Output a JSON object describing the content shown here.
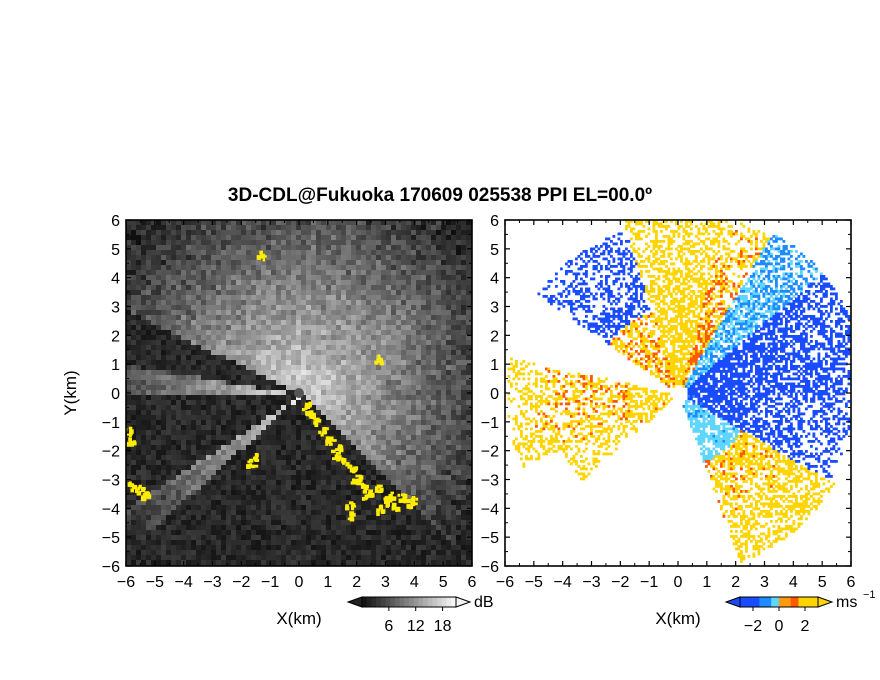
{
  "figure": {
    "title": "3D-CDL@Fukuoka 170609 025538 PPI EL=00.0º"
  },
  "chart_data": [
    {
      "type": "heatmap",
      "panel": "left",
      "quantity": "backscatter intensity",
      "xlabel": "X(km)",
      "ylabel": "Y(km)",
      "xlim": [
        -6,
        6
      ],
      "ylim": [
        -6,
        6
      ],
      "xticks": [
        "−6",
        "−5",
        "−4",
        "−3",
        "−2",
        "−1",
        "0",
        "1",
        "2",
        "3",
        "4",
        "5",
        "6"
      ],
      "yticks": [
        "6",
        "5",
        "4",
        "3",
        "2",
        "1",
        "0",
        "−1",
        "−2",
        "−3",
        "−4",
        "−5",
        "−6"
      ],
      "colorbar": {
        "unit": "dB",
        "ticks": [
          "6",
          "12",
          "18"
        ],
        "tick_values": [
          6,
          12,
          18
        ],
        "range": [
          0,
          21
        ],
        "palette": "grayscale",
        "highlight_color": "#ffee00"
      },
      "colors": {
        "background": "#2a2a2a",
        "bright": "#f4f4f4",
        "highlight": "#ffee00"
      }
    },
    {
      "type": "heatmap",
      "panel": "right",
      "quantity": "Doppler radial velocity",
      "xlabel": "X(km)",
      "ylabel": "",
      "xlim": [
        -6,
        6
      ],
      "ylim": [
        -6,
        6
      ],
      "xticks": [
        "−6",
        "−5",
        "−4",
        "−3",
        "−2",
        "−1",
        "0",
        "1",
        "2",
        "3",
        "4",
        "5",
        "6"
      ],
      "yticks": [
        "6",
        "5",
        "4",
        "3",
        "2",
        "1",
        "0",
        "−1",
        "−2",
        "−3",
        "−4",
        "−5",
        "−6"
      ],
      "colorbar": {
        "unit": "ms",
        "unit_superscript": "−1",
        "ticks": [
          "−2",
          "0",
          "2"
        ],
        "tick_values": [
          -2,
          0,
          2
        ],
        "range": [
          -3,
          3
        ],
        "palette": "cyan-blue-red-orange-yellow"
      },
      "colors": {
        "negative": "#1e64ff",
        "near_zero_neg": "#55d8ff",
        "positive": "#ff5a00",
        "high_positive": "#ffd400"
      }
    }
  ]
}
